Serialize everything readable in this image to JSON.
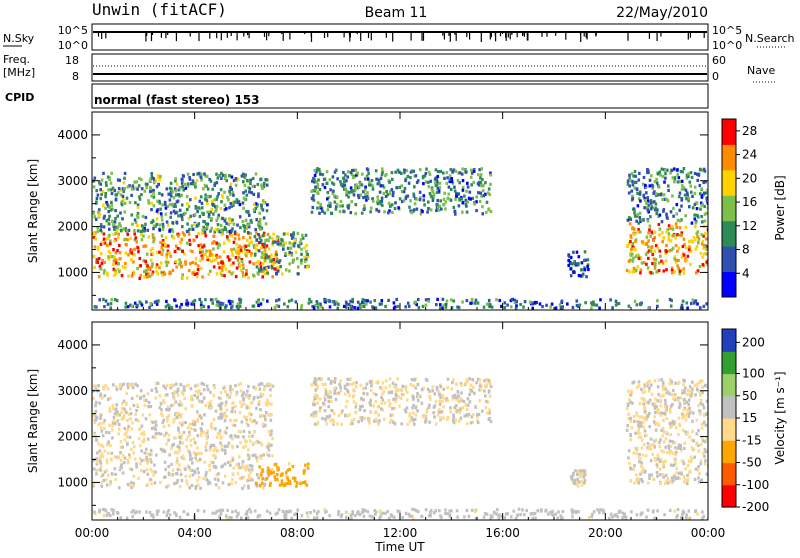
{
  "header": {
    "site": "Unwin (fitACF)",
    "beam": "Beam 11",
    "date": "22/May/2010"
  },
  "status_panel": {
    "nsky_label": "N.Sky",
    "nsky_ticks": [
      "10^5",
      "10^0"
    ],
    "nsearch_label": "N.Search",
    "nsearch_ticks": [
      "10^5",
      "10^0"
    ],
    "freq_label": "Freq.",
    "freq_unit": "[MHz]",
    "freq_ticks": [
      "18",
      "8"
    ],
    "nave_label": "Nave",
    "nave_ticks": [
      "60",
      "0"
    ],
    "cpid_label": "CPID",
    "cpid_text": "normal (fast stereo) 153"
  },
  "chart_data": [
    {
      "type": "heatmap",
      "name": "power",
      "xlabel": "",
      "ylabel": "Slant Range [km]",
      "x_ticks": [
        "00:00",
        "04:00",
        "08:00",
        "12:00",
        "16:00",
        "20:00",
        "00:00"
      ],
      "x_range_hours": [
        0,
        24
      ],
      "ylim": [
        180,
        4500
      ],
      "y_ticks": [
        1000,
        2000,
        3000,
        4000
      ],
      "colorbar_label": "Power [dB]",
      "colorbar_ticks": [
        "4",
        "8",
        "12",
        "16",
        "20",
        "24",
        "28"
      ],
      "colorbar_range": [
        0,
        30
      ],
      "colors": [
        "#0000ff",
        "#3050b0",
        "#2e8b57",
        "#7cc04a",
        "#ffd200",
        "#ff8c00",
        "#ff0000"
      ],
      "regions": [
        {
          "t": [
            0.0,
            7.2
          ],
          "r": [
            900,
            1900
          ],
          "level": 22
        },
        {
          "t": [
            0.0,
            6.8
          ],
          "r": [
            1900,
            3200
          ],
          "level": 11
        },
        {
          "t": [
            6.2,
            8.4
          ],
          "r": [
            1000,
            1900
          ],
          "level": 12
        },
        {
          "t": [
            8.5,
            15.5
          ],
          "r": [
            2300,
            3300
          ],
          "level": 10
        },
        {
          "t": [
            18.5,
            19.3
          ],
          "r": [
            900,
            1500
          ],
          "level": 6
        },
        {
          "t": [
            20.8,
            24.0
          ],
          "r": [
            1000,
            2100
          ],
          "level": 21
        },
        {
          "t": [
            20.8,
            24.0
          ],
          "r": [
            2100,
            3300
          ],
          "level": 10
        },
        {
          "t": [
            0.0,
            24.0
          ],
          "r": [
            250,
            450
          ],
          "level": 8
        }
      ]
    },
    {
      "type": "heatmap",
      "name": "velocity",
      "xlabel": "Time UT",
      "ylabel": "Slant Range [km]",
      "x_ticks": [
        "00:00",
        "04:00",
        "08:00",
        "12:00",
        "16:00",
        "20:00",
        "00:00"
      ],
      "x_range_hours": [
        0,
        24
      ],
      "ylim": [
        180,
        4500
      ],
      "y_ticks": [
        1000,
        2000,
        3000,
        4000
      ],
      "colorbar_label": "Velocity [m s⁻¹]",
      "colorbar_ticks": [
        "200",
        "100",
        "50",
        "15",
        "-15",
        "-50",
        "-100",
        "-200"
      ],
      "colorbar_range": [
        -250,
        250
      ],
      "colors": [
        "#ff0000",
        "#ff5a00",
        "#ffa500",
        "#ffd98a",
        "#c0c0c0",
        "#9bd06a",
        "#30a030",
        "#2040c0"
      ],
      "regions": [
        {
          "t": [
            0.0,
            7.0
          ],
          "r": [
            900,
            3200
          ],
          "level": 0
        },
        {
          "t": [
            6.3,
            8.4
          ],
          "r": [
            950,
            1450
          ],
          "level": -80
        },
        {
          "t": [
            8.5,
            15.5
          ],
          "r": [
            2300,
            3300
          ],
          "level": 0
        },
        {
          "t": [
            18.6,
            19.2
          ],
          "r": [
            950,
            1300
          ],
          "level": 0
        },
        {
          "t": [
            20.8,
            24.0
          ],
          "r": [
            1000,
            3300
          ],
          "level": 0
        },
        {
          "t": [
            0.0,
            24.0
          ],
          "r": [
            250,
            450
          ],
          "level": 20
        }
      ]
    }
  ]
}
